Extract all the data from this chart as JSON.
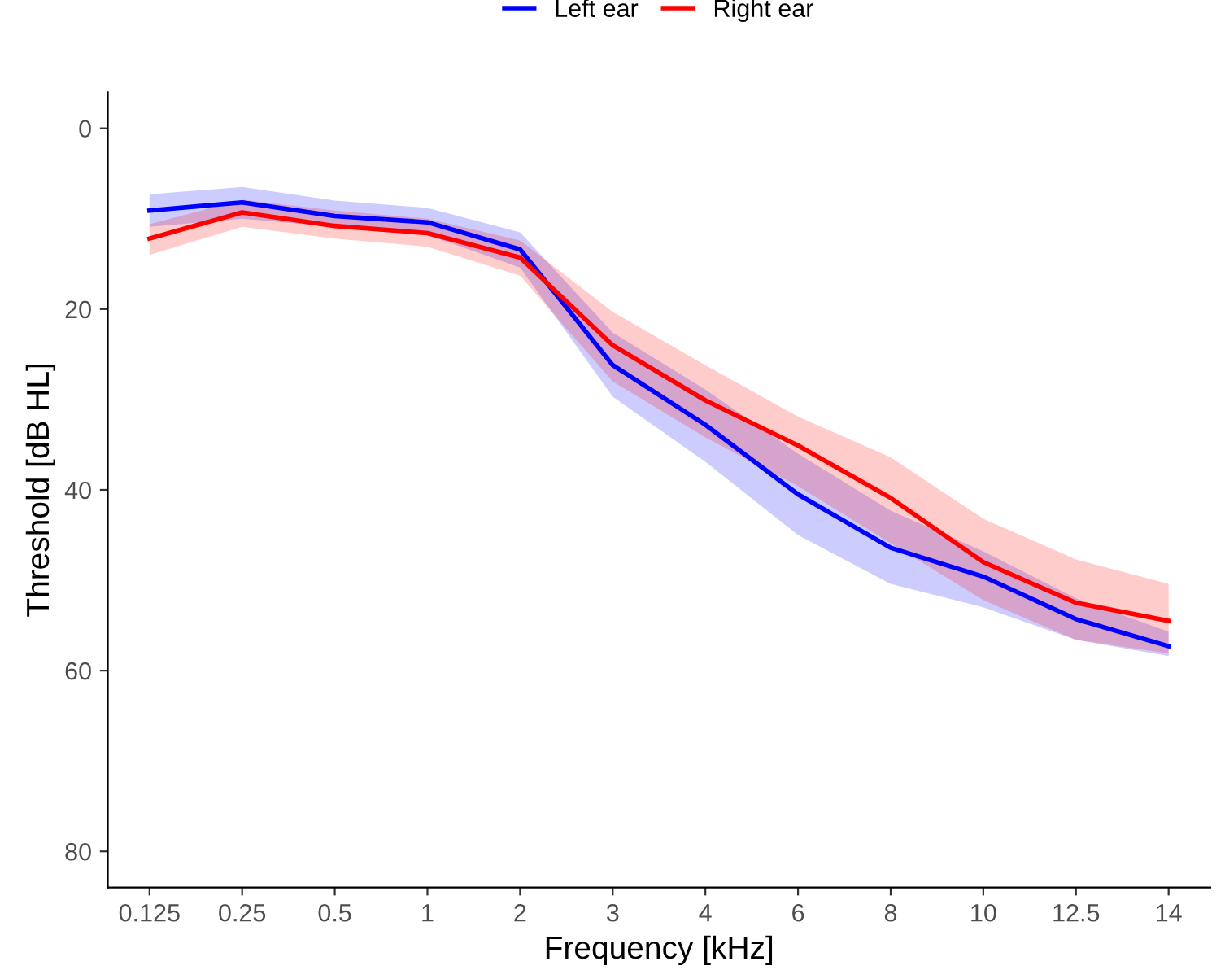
{
  "chart_data": {
    "type": "line",
    "xlabel": "Frequency [kHz]",
    "ylabel": "Threshold [dB HL]",
    "categories": [
      "0.125",
      "0.25",
      "0.5",
      "1",
      "2",
      "3",
      "4",
      "6",
      "8",
      "10",
      "12.5",
      "14"
    ],
    "ylim": [
      84,
      -4
    ],
    "yticks": [
      0,
      20,
      40,
      60,
      80
    ],
    "grid": false,
    "legend": "top",
    "line_style": "solid",
    "marker": "none",
    "series": [
      {
        "name": "Left ear",
        "color": "#0000ff",
        "values": [
          9.1,
          8.2,
          9.7,
          10.4,
          13.4,
          26.2,
          32.8,
          40.5,
          46.4,
          49.6,
          54.3,
          57.3
        ],
        "lower": [
          7.3,
          6.5,
          8,
          8.8,
          11.5,
          22.6,
          28.9,
          36,
          42.3,
          46.8,
          52,
          55.7
        ],
        "upper": [
          10.9,
          10,
          10.9,
          11.8,
          15.4,
          29.7,
          36.9,
          45,
          50.4,
          53,
          56.6,
          58.4
        ]
      },
      {
        "name": "Right ear",
        "color": "#ff0000",
        "values": [
          12.2,
          9.3,
          10.8,
          11.6,
          14.3,
          24,
          30.1,
          35.1,
          40.9,
          48,
          52.5,
          54.5
        ],
        "lower": [
          10.6,
          7.9,
          9.1,
          10,
          12.4,
          20.3,
          26.2,
          31.9,
          36.4,
          43.2,
          47.7,
          50.4
        ],
        "upper": [
          14,
          10.9,
          12.2,
          13.1,
          16.3,
          28,
          34.2,
          39.6,
          45.9,
          52.2,
          56.6,
          58.1
        ]
      }
    ]
  }
}
